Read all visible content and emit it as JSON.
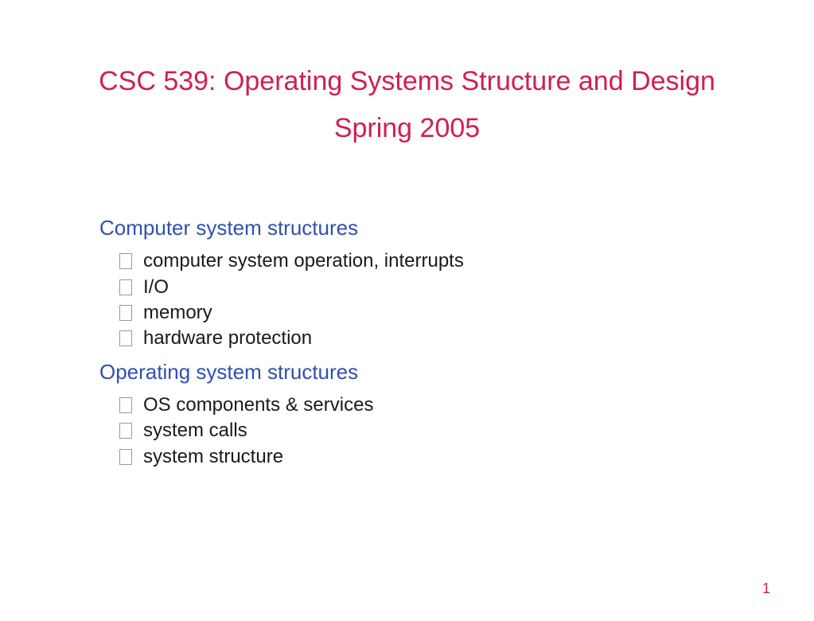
{
  "colors": {
    "title": "#d02050",
    "subtitle": "#d02050",
    "section_heading": "#3050b0",
    "body_text": "#1a1a1a",
    "page_number": "#d02050",
    "background": "#ffffff"
  },
  "typography": {
    "title_fontsize": 34,
    "subtitle_fontsize": 34,
    "heading_fontsize": 26,
    "body_fontsize": 24,
    "page_number_fontsize": 18,
    "font_family": "Arial"
  },
  "title": "CSC 539: Operating Systems Structure and Design",
  "subtitle": "Spring 2005",
  "sections": [
    {
      "heading": "Computer system structures",
      "items": [
        "computer system operation, interrupts",
        "I/O",
        "memory",
        "hardware protection"
      ]
    },
    {
      "heading": "Operating system structures",
      "items": [
        "OS components & services",
        "system calls",
        "system structure"
      ]
    }
  ],
  "page_number": "1"
}
